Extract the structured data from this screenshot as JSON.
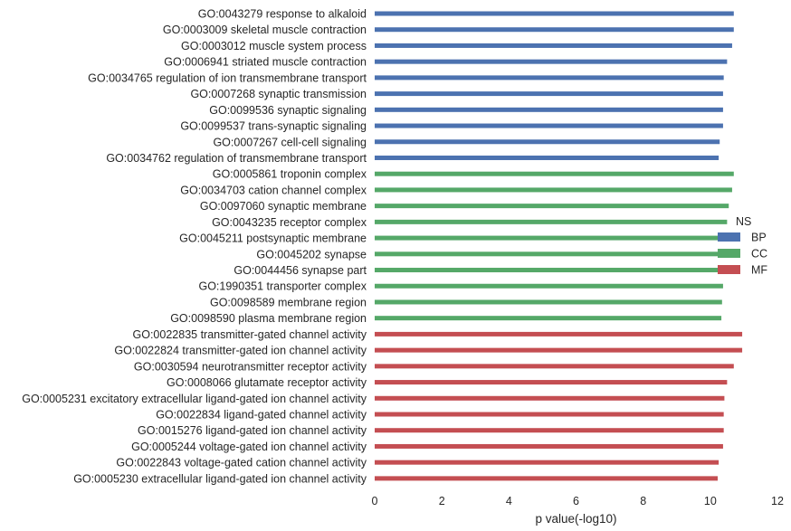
{
  "chart_data": {
    "type": "bar",
    "orientation": "horizontal",
    "xlabel": "p value(-log10)",
    "ylabel": "",
    "xlim": [
      0,
      12
    ],
    "xticks": [
      0,
      2,
      4,
      6,
      8,
      10,
      12
    ],
    "grid": false,
    "legend": {
      "title": "NS",
      "placement": "right",
      "entries": [
        {
          "name": "BP",
          "color": "#4c72b0"
        },
        {
          "name": "CC",
          "color": "#55a868"
        },
        {
          "name": "MF",
          "color": "#c44e52"
        }
      ]
    },
    "bars": [
      {
        "label": "GO:0043279 response to alkaloid",
        "value": 10.7,
        "group": "BP"
      },
      {
        "label": "GO:0003009 skeletal muscle contraction",
        "value": 10.7,
        "group": "BP"
      },
      {
        "label": "GO:0003012 muscle system process",
        "value": 10.65,
        "group": "BP"
      },
      {
        "label": "GO:0006941 striated muscle contraction",
        "value": 10.5,
        "group": "BP"
      },
      {
        "label": "GO:0034765 regulation of ion transmembrane transport",
        "value": 10.4,
        "group": "BP"
      },
      {
        "label": "GO:0007268 synaptic transmission",
        "value": 10.38,
        "group": "BP"
      },
      {
        "label": "GO:0099536 synaptic signaling",
        "value": 10.38,
        "group": "BP"
      },
      {
        "label": "GO:0099537 trans-synaptic signaling",
        "value": 10.38,
        "group": "BP"
      },
      {
        "label": "GO:0007267 cell-cell signaling",
        "value": 10.28,
        "group": "BP"
      },
      {
        "label": "GO:0034762 regulation of transmembrane transport",
        "value": 10.25,
        "group": "BP"
      },
      {
        "label": "GO:0005861 troponin complex",
        "value": 10.7,
        "group": "CC"
      },
      {
        "label": "GO:0034703 cation channel complex",
        "value": 10.65,
        "group": "CC"
      },
      {
        "label": "GO:0097060 synaptic membrane",
        "value": 10.55,
        "group": "CC"
      },
      {
        "label": "GO:0043235 receptor complex",
        "value": 10.5,
        "group": "CC"
      },
      {
        "label": "GO:0045211 postsynaptic membrane",
        "value": 10.45,
        "group": "CC"
      },
      {
        "label": "GO:0045202 synapse",
        "value": 10.4,
        "group": "CC"
      },
      {
        "label": "GO:0044456 synapse part",
        "value": 10.4,
        "group": "CC"
      },
      {
        "label": "GO:1990351 transporter complex",
        "value": 10.38,
        "group": "CC"
      },
      {
        "label": "GO:0098589 membrane region",
        "value": 10.35,
        "group": "CC"
      },
      {
        "label": "GO:0098590 plasma membrane region",
        "value": 10.33,
        "group": "CC"
      },
      {
        "label": "GO:0022835 transmitter-gated channel activity",
        "value": 10.95,
        "group": "MF"
      },
      {
        "label": "GO:0022824 transmitter-gated ion channel activity",
        "value": 10.95,
        "group": "MF"
      },
      {
        "label": "GO:0030594 neurotransmitter receptor activity",
        "value": 10.7,
        "group": "MF"
      },
      {
        "label": "GO:0008066 glutamate receptor activity",
        "value": 10.5,
        "group": "MF"
      },
      {
        "label": "GO:0005231 excitatory extracellular ligand-gated ion channel activity",
        "value": 10.42,
        "group": "MF"
      },
      {
        "label": "GO:0022834 ligand-gated channel activity",
        "value": 10.4,
        "group": "MF"
      },
      {
        "label": "GO:0015276 ligand-gated ion channel activity",
        "value": 10.4,
        "group": "MF"
      },
      {
        "label": "GO:0005244 voltage-gated ion channel activity",
        "value": 10.38,
        "group": "MF"
      },
      {
        "label": "GO:0022843 voltage-gated cation channel activity",
        "value": 10.25,
        "group": "MF"
      },
      {
        "label": "GO:0005230 extracellular ligand-gated ion channel activity",
        "value": 10.22,
        "group": "MF"
      }
    ]
  }
}
